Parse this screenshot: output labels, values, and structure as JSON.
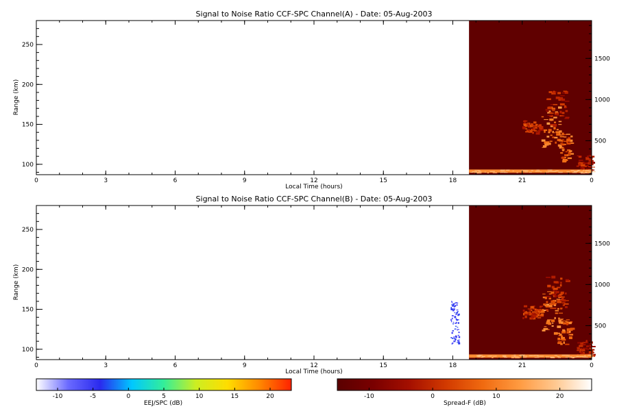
{
  "chart_data": [
    {
      "type": "heatmap",
      "title": "Signal to Noise Ratio CCF-SPC Channel(A) - Date: 05-Aug-2003",
      "xlabel": "Local Time (hours)",
      "ylabel": "Range (km)",
      "xlim": [
        0,
        24
      ],
      "ylim": [
        87,
        280
      ],
      "y2lim": [
        87,
        1960
      ],
      "x_ticks": [
        "0",
        "3",
        "6",
        "9",
        "12",
        "15",
        "18",
        "21",
        "0"
      ],
      "y_ticks": [
        100,
        150,
        200,
        250
      ],
      "y2_ticks": [
        500,
        1000,
        1500
      ],
      "spread_f": {
        "start_hour": 18.7,
        "background_db": -14,
        "features": [
          {
            "t": [
              21.0,
              21.8
            ],
            "r": [
              600,
              750
            ],
            "level_db": 6
          },
          {
            "t": [
              21.8,
              22.6
            ],
            "r": [
              420,
              920
            ],
            "level_db": 14
          },
          {
            "t": [
              22.0,
              22.9
            ],
            "r": [
              700,
              1120
            ],
            "level_db": 4
          },
          {
            "t": [
              22.5,
              23.1
            ],
            "r": [
              260,
              600
            ],
            "level_db": 12
          },
          {
            "t": [
              23.3,
              24.0
            ],
            "r": [
              140,
              330
            ],
            "level_db": 3
          }
        ],
        "bottom_echo": {
          "r": [
            110,
            150
          ],
          "level_db": 18
        }
      },
      "eej_patch": null
    },
    {
      "type": "heatmap",
      "title": "Signal to Noise Ratio CCF-SPC Channel(B) - Date: 05-Aug-2003",
      "xlabel": "Local Time (hours)",
      "ylabel": "Range (km)",
      "xlim": [
        0,
        24
      ],
      "ylim": [
        87,
        280
      ],
      "y2lim": [
        87,
        1960
      ],
      "x_ticks": [
        "0",
        "3",
        "6",
        "9",
        "12",
        "15",
        "18",
        "21",
        "0"
      ],
      "y_ticks": [
        100,
        150,
        200,
        250
      ],
      "y2_ticks": [
        500,
        1000,
        1500
      ],
      "spread_f": {
        "start_hour": 18.7,
        "background_db": -14,
        "features": [
          {
            "t": [
              21.0,
              21.8
            ],
            "r": [
              600,
              750
            ],
            "level_db": 6
          },
          {
            "t": [
              21.8,
              22.6
            ],
            "r": [
              420,
              920
            ],
            "level_db": 15
          },
          {
            "t": [
              22.0,
              22.9
            ],
            "r": [
              700,
              1120
            ],
            "level_db": 5
          },
          {
            "t": [
              22.5,
              23.1
            ],
            "r": [
              260,
              600
            ],
            "level_db": 12
          },
          {
            "t": [
              23.3,
              24.0
            ],
            "r": [
              140,
              330
            ],
            "level_db": 3
          }
        ],
        "bottom_echo": {
          "r": [
            110,
            150
          ],
          "level_db": 18
        }
      },
      "eej_patch": {
        "t": [
          17.9,
          18.25
        ],
        "r": [
          108,
          162
        ],
        "level_db": -7
      }
    }
  ],
  "colorbars": [
    {
      "label": "EEJ/SPC (dB)",
      "range": [
        -13,
        23
      ],
      "ticks": [
        "-10",
        "-5",
        "0",
        "5",
        "10",
        "15",
        "20"
      ],
      "colors": [
        "#ffffff",
        "#6a6aff",
        "#2a2aee",
        "#00c8ff",
        "#33ee99",
        "#ccee22",
        "#ffdd00",
        "#ff8800",
        "#ff2200"
      ]
    },
    {
      "label": "Spread-F (dB)",
      "range": [
        -15,
        25
      ],
      "ticks": [
        "-10",
        "0",
        "10",
        "20"
      ],
      "colors": [
        "#5a0000",
        "#7a0000",
        "#a51000",
        "#d23a00",
        "#f06a10",
        "#ff9a40",
        "#ffc890",
        "#ffffff"
      ]
    }
  ]
}
